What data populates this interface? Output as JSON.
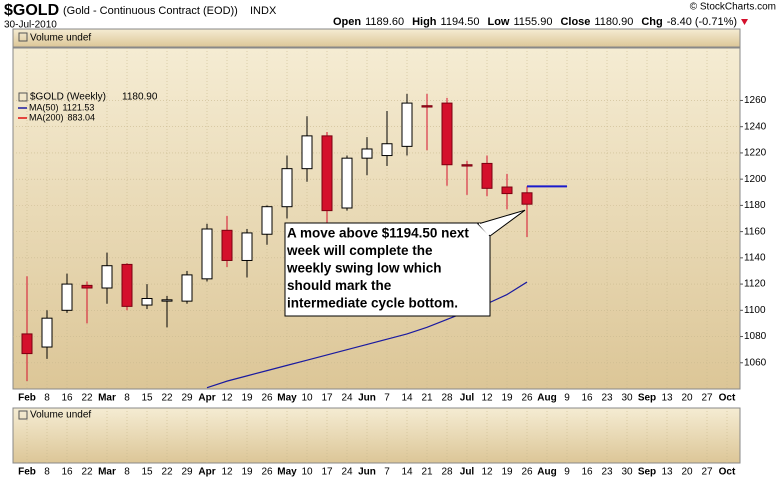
{
  "chart_data": {
    "type": "candlestick",
    "title": "$GOLD",
    "subtitle": "(Gold - Continuous Contract (EOD))",
    "exchange": "INDX",
    "date": "30-Jul-2010",
    "source": "© StockCharts.com",
    "quote": {
      "open_label": "Open",
      "open": {
        "value": 1189.6,
        "label": "1189.60"
      },
      "high_label": "High",
      "high": {
        "value": 1194.5,
        "label": "1194.50"
      },
      "low_label": "Low",
      "low": {
        "value": 1155.9,
        "label": "1155.90"
      },
      "close_label": "Close",
      "close": {
        "value": 1180.9,
        "label": "1180.90"
      },
      "change_label": "Chg",
      "change": {
        "value": -8.4,
        "label": "-8.40"
      },
      "change_pct": {
        "value": -0.71,
        "label": "(-0.71%)"
      }
    },
    "volume_label": "Volume undef",
    "series_name": "$GOLD (Weekly)",
    "last": {
      "value": 1180.9,
      "label": "1180.90"
    },
    "up_color": "#000000",
    "down_color": "#d4102c",
    "open": [
      1082,
      1072,
      1100,
      1119,
      1117,
      1135,
      1104,
      1107,
      1107,
      1124,
      1161,
      1138,
      1158,
      1179,
      1208,
      1233,
      1178,
      1216,
      1218,
      1225,
      1256,
      1258,
      1211,
      1212,
      1194,
      1189.6
    ],
    "high": [
      1126,
      1100,
      1128,
      1122,
      1144,
      1136,
      1120,
      1111,
      1130,
      1166,
      1172,
      1162,
      1180,
      1218,
      1248,
      1236,
      1218,
      1232,
      1252,
      1265,
      1265,
      1262,
      1214,
      1218,
      1204,
      1194.5
    ],
    "low": [
      1046,
      1063,
      1098,
      1090,
      1105,
      1100,
      1101,
      1087,
      1105,
      1122,
      1133,
      1125,
      1150,
      1170,
      1198,
      1165,
      1176,
      1203,
      1210,
      1218,
      1222,
      1195,
      1188,
      1187,
      1177,
      1155.9
    ],
    "close": [
      1067,
      1094,
      1120,
      1117,
      1134,
      1103,
      1109,
      1108,
      1127,
      1162,
      1138,
      1159,
      1179,
      1208,
      1233,
      1176,
      1216,
      1223,
      1227,
      1258,
      1255,
      1211,
      1210,
      1193,
      1189,
      1180.9
    ],
    "ma_series": [
      {
        "name": "MA(50)",
        "last": 1121.53,
        "color": "#1a1aa0",
        "values": [
          null,
          null,
          null,
          null,
          null,
          null,
          null,
          null,
          null,
          1041,
          1046,
          1050,
          1054,
          1058,
          1062,
          1066,
          1070,
          1074,
          1078,
          1082,
          1087,
          1093,
          1099,
          1105,
          1112,
          1121.53
        ]
      },
      {
        "name": "MA(200)",
        "last": 883.04,
        "color": "#e01010"
      }
    ],
    "xtick_labels": [
      "Feb",
      "8",
      "16",
      "22",
      "Mar",
      "8",
      "15",
      "22",
      "29",
      "Apr",
      "12",
      "19",
      "26",
      "May",
      "10",
      "17",
      "24",
      "Jun",
      "7",
      "14",
      "21",
      "28",
      "Jul",
      "12",
      "19",
      "26",
      "Aug",
      "9",
      "16",
      "23",
      "30",
      "Sep",
      "13",
      "20",
      "27",
      "Oct"
    ],
    "ylim": [
      1040,
      1300
    ],
    "yticks": [
      1060,
      1080,
      1100,
      1120,
      1140,
      1160,
      1180,
      1200,
      1220,
      1240,
      1260
    ],
    "grid": true,
    "annotation": {
      "lines": [
        "A move above $1194.50 next",
        "week will complete the",
        "weekly swing low which",
        "should mark the",
        "intermediate cycle bottom."
      ],
      "level": 1194.5,
      "color": "#1a1acc"
    }
  }
}
